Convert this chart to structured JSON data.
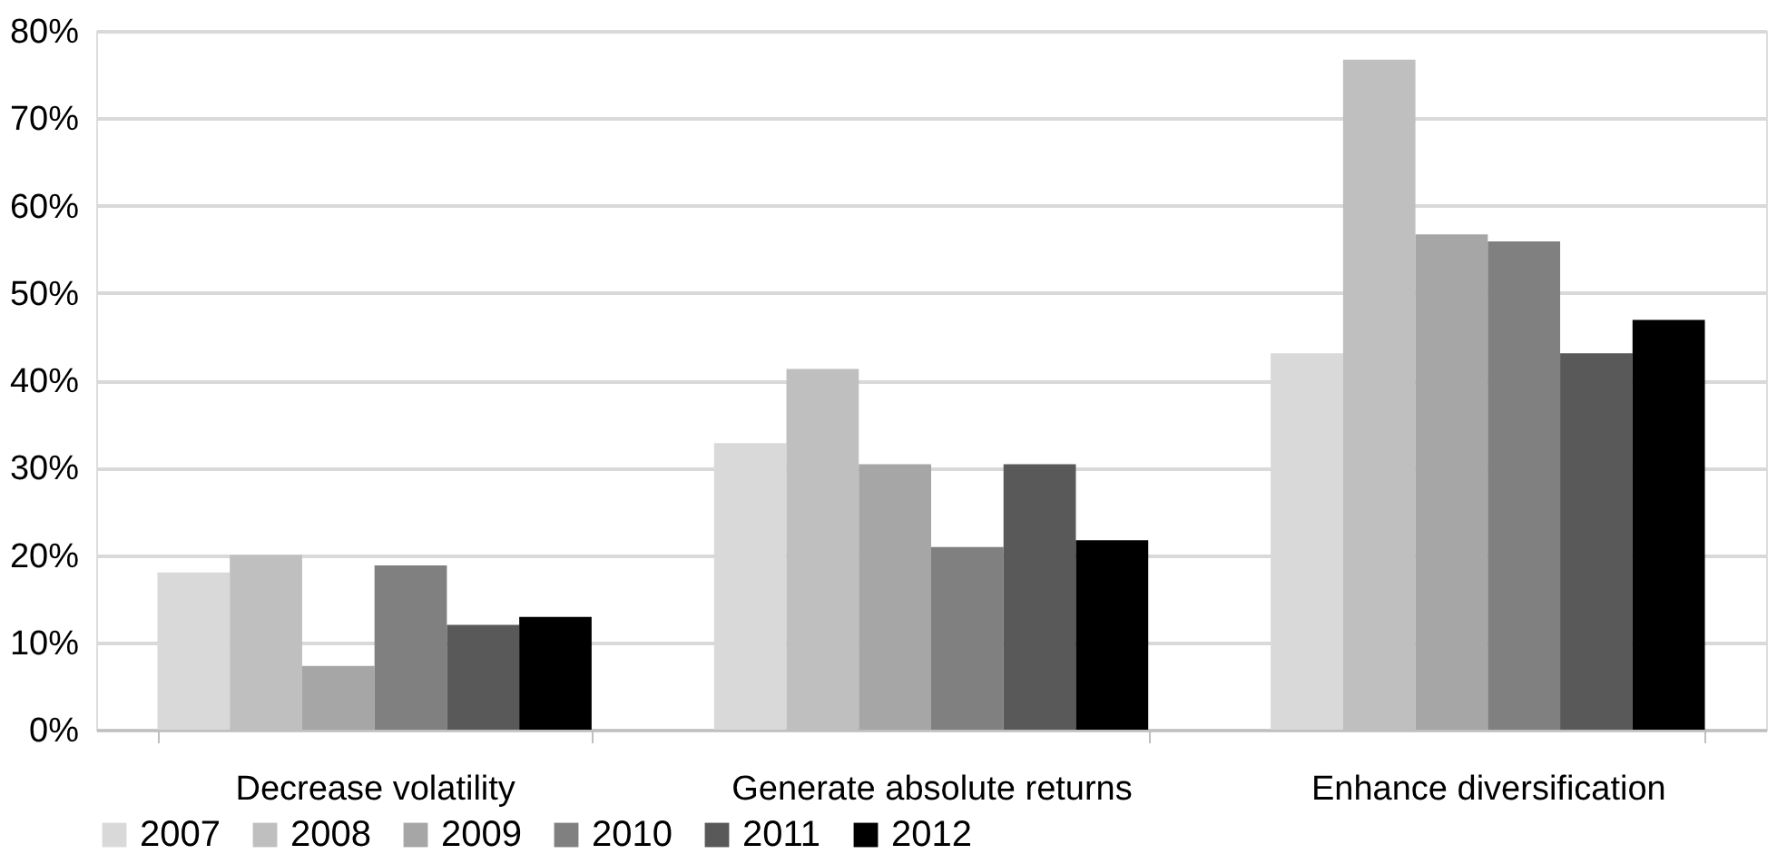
{
  "chart_data": {
    "type": "bar",
    "categories": [
      "Decrease volatility",
      "Generate absolute  returns",
      "Enhance diversification"
    ],
    "series": [
      {
        "name": "2007",
        "color": "#d9d9d9",
        "values": [
          18.0,
          32.8,
          43.1
        ]
      },
      {
        "name": "2008",
        "color": "#bfbfbf",
        "values": [
          20.0,
          41.3,
          76.7
        ]
      },
      {
        "name": "2009",
        "color": "#a6a6a6",
        "values": [
          7.3,
          30.4,
          56.7
        ]
      },
      {
        "name": "2010",
        "color": "#808080",
        "values": [
          18.8,
          20.9,
          55.9
        ]
      },
      {
        "name": "2011",
        "color": "#595959",
        "values": [
          12.0,
          30.4,
          43.1
        ]
      },
      {
        "name": "2012",
        "color": "#000000",
        "values": [
          12.9,
          21.7,
          46.9
        ]
      }
    ],
    "ylim": [
      0,
      80
    ],
    "yticks": [
      {
        "value": 0,
        "label": "0%"
      },
      {
        "value": 10,
        "label": "10%"
      },
      {
        "value": 20,
        "label": "20%"
      },
      {
        "value": 30,
        "label": "30%"
      },
      {
        "value": 40,
        "label": "40%"
      },
      {
        "value": 50,
        "label": "50%"
      },
      {
        "value": 60,
        "label": "60%"
      },
      {
        "value": 70,
        "label": "70%"
      },
      {
        "value": 80,
        "label": "80%"
      }
    ],
    "grid": "y",
    "legend": "bottom"
  }
}
